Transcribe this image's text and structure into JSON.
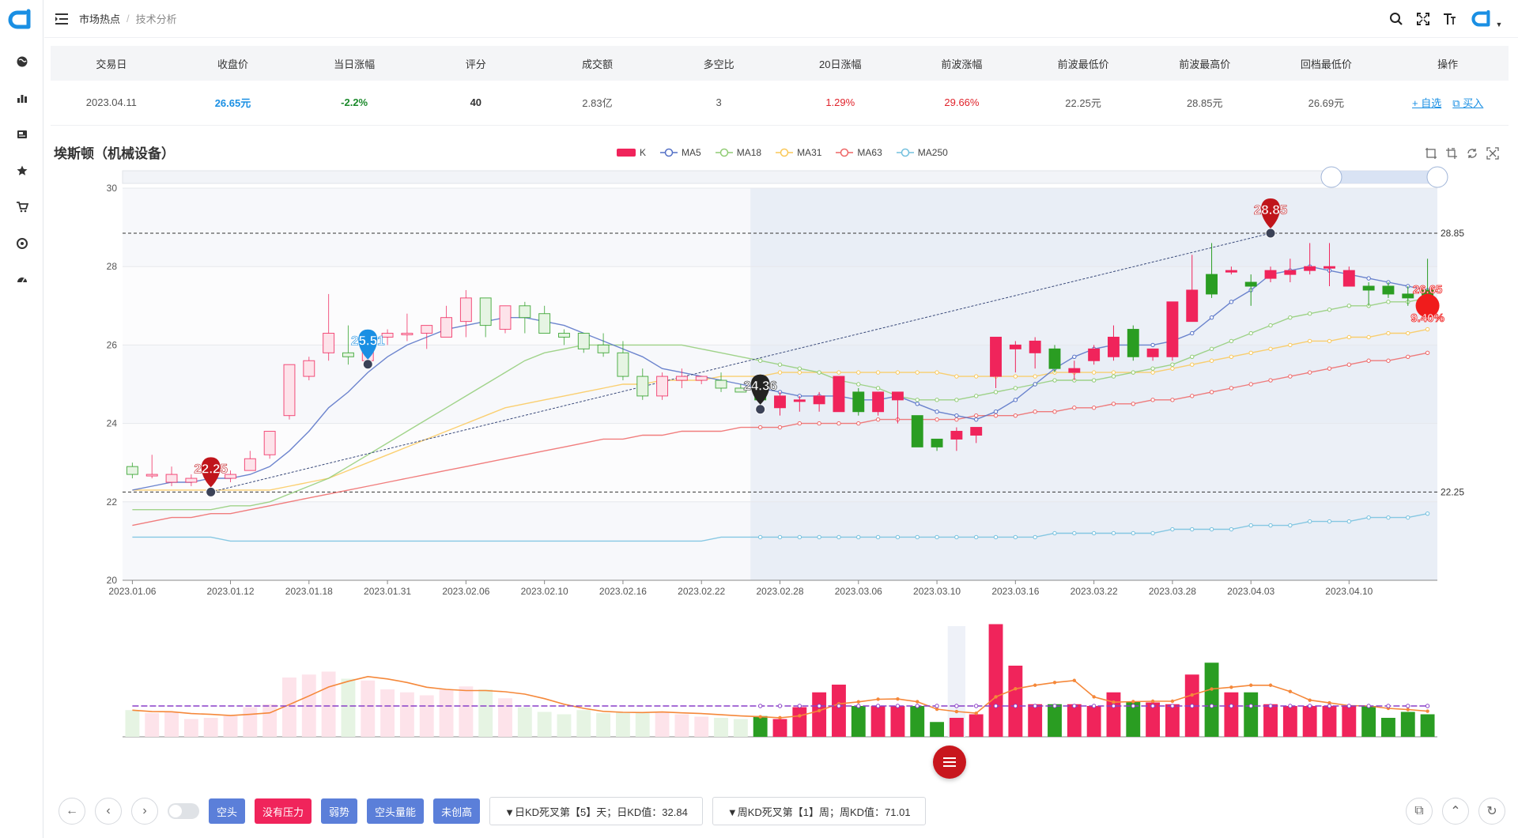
{
  "breadcrumb": {
    "parent": "市场热点",
    "separator": "/",
    "current": "技术分析"
  },
  "summary": {
    "headers": [
      "交易日",
      "收盘价",
      "当日涨幅",
      "评分",
      "成交额",
      "多空比",
      "20日涨幅",
      "前波涨幅",
      "前波最低价",
      "前波最高价",
      "回档最低价",
      "操作"
    ],
    "row": {
      "date": "2023.04.11",
      "close": "26.65元",
      "change": "-2.2%",
      "score": "40",
      "turnover": "2.83亿",
      "ratio": "3",
      "change20": "1.29%",
      "prev_wave": "29.66%",
      "prev_low": "22.25元",
      "prev_high": "28.85元",
      "pullback_low": "26.69元",
      "op_watch": "+ 自选",
      "op_buy": "买入"
    }
  },
  "chart_title": "埃斯顿（机械设备）",
  "legend": [
    {
      "label": "K",
      "color": "#f0245b",
      "kind": "rect"
    },
    {
      "label": "MA5",
      "color": "#5470c6",
      "kind": "dot"
    },
    {
      "label": "MA18",
      "color": "#91cc75",
      "kind": "dot"
    },
    {
      "label": "MA31",
      "color": "#fac858",
      "kind": "dot"
    },
    {
      "label": "MA63",
      "color": "#ee6666",
      "kind": "dot"
    },
    {
      "label": "MA250",
      "color": "#73c0de",
      "kind": "dot"
    }
  ],
  "chart_data": {
    "type": "candlestick",
    "y_ticks": [
      30,
      28,
      26,
      24,
      22,
      20
    ],
    "ylim": [
      20,
      30
    ],
    "x_ticks": [
      "2023.01.06",
      "2023.01.12",
      "2023.01.18",
      "2023.01.31",
      "2023.02.06",
      "2023.02.10",
      "2023.02.16",
      "2023.02.22",
      "2023.02.28",
      "2023.03.06",
      "2023.03.10",
      "2023.03.16",
      "2023.03.22",
      "2023.03.28",
      "2023.04.03",
      "2023.04.10"
    ],
    "candles": [
      [
        22.9,
        22.7,
        23.0,
        22.6
      ],
      [
        22.7,
        22.7,
        23.2,
        22.6
      ],
      [
        22.5,
        22.7,
        22.9,
        22.4
      ],
      [
        22.5,
        22.6,
        22.7,
        22.4
      ],
      [
        22.6,
        22.7,
        22.8,
        22.5
      ],
      [
        22.6,
        22.7,
        22.8,
        22.5
      ],
      [
        22.8,
        23.1,
        23.3,
        22.8
      ],
      [
        23.2,
        23.8,
        23.8,
        23.1
      ],
      [
        24.2,
        25.5,
        25.5,
        24.1
      ],
      [
        25.2,
        25.6,
        25.7,
        25.1
      ],
      [
        25.8,
        26.3,
        27.3,
        25.6
      ],
      [
        25.8,
        25.7,
        26.5,
        25.5
      ],
      [
        25.6,
        26.2,
        26.3,
        25.5
      ],
      [
        26.2,
        26.3,
        26.4,
        26.0
      ],
      [
        26.3,
        26.3,
        26.8,
        26.1
      ],
      [
        26.3,
        26.5,
        26.5,
        25.9
      ],
      [
        26.2,
        26.7,
        27.0,
        26.2
      ],
      [
        26.6,
        27.2,
        27.4,
        26.2
      ],
      [
        27.2,
        26.5,
        27.2,
        26.2
      ],
      [
        26.4,
        27.0,
        27.0,
        26.3
      ],
      [
        27.0,
        26.7,
        27.1,
        26.3
      ],
      [
        26.8,
        26.3,
        27.0,
        26.3
      ],
      [
        26.3,
        26.2,
        26.4,
        26.0
      ],
      [
        26.3,
        25.9,
        26.3,
        25.8
      ],
      [
        26.0,
        25.8,
        26.3,
        25.7
      ],
      [
        25.8,
        25.2,
        26.1,
        25.1
      ],
      [
        25.2,
        24.7,
        25.4,
        24.6
      ],
      [
        24.7,
        25.2,
        25.3,
        24.6
      ],
      [
        25.1,
        25.2,
        25.4,
        24.9
      ],
      [
        25.1,
        25.2,
        25.2,
        25.0
      ],
      [
        25.1,
        24.9,
        25.3,
        24.8
      ],
      [
        24.9,
        24.8,
        25.0,
        24.8
      ],
      [
        24.8,
        24.6,
        24.9,
        24.4
      ],
      [
        24.4,
        24.7,
        24.8,
        24.2
      ],
      [
        24.6,
        24.6,
        24.7,
        24.3
      ],
      [
        24.5,
        24.7,
        24.8,
        24.3
      ],
      [
        24.3,
        25.2,
        25.2,
        24.3
      ],
      [
        24.8,
        24.3,
        24.9,
        24.2
      ],
      [
        24.3,
        24.8,
        24.8,
        24.2
      ],
      [
        24.6,
        24.8,
        24.8,
        24.0
      ],
      [
        24.2,
        23.4,
        24.2,
        23.4
      ],
      [
        23.6,
        23.4,
        23.6,
        23.3
      ],
      [
        23.6,
        23.8,
        23.9,
        23.3
      ],
      [
        23.7,
        23.9,
        23.9,
        23.5
      ],
      [
        25.2,
        26.2,
        26.2,
        24.9
      ],
      [
        25.9,
        26.0,
        26.1,
        25.3
      ],
      [
        25.8,
        26.1,
        26.2,
        25.4
      ],
      [
        25.9,
        25.4,
        26.0,
        25.3
      ],
      [
        25.3,
        25.4,
        25.6,
        25.1
      ],
      [
        25.6,
        25.9,
        26.0,
        25.5
      ],
      [
        25.7,
        26.2,
        26.5,
        25.6
      ],
      [
        26.4,
        25.7,
        26.5,
        25.6
      ],
      [
        25.7,
        25.9,
        25.9,
        25.6
      ],
      [
        25.7,
        27.1,
        27.1,
        25.6
      ],
      [
        26.6,
        27.4,
        28.3,
        26.6
      ],
      [
        27.8,
        27.3,
        28.6,
        27.2
      ],
      [
        27.9,
        27.9,
        28.0,
        27.8
      ],
      [
        27.6,
        27.5,
        27.8,
        27.0
      ],
      [
        27.7,
        27.9,
        28.0,
        27.6
      ],
      [
        27.8,
        27.9,
        28.2,
        27.6
      ],
      [
        27.9,
        28.0,
        28.6,
        27.8
      ],
      [
        28.0,
        28.0,
        28.6,
        27.5
      ],
      [
        27.5,
        27.9,
        28.0,
        27.6
      ],
      [
        27.5,
        27.4,
        27.6,
        27.0
      ],
      [
        27.5,
        27.3,
        27.6,
        27.2
      ],
      [
        27.3,
        27.2,
        27.5,
        27.0
      ],
      [
        27.4,
        27.0,
        28.2,
        26.9
      ]
    ],
    "ma5": [
      22.3,
      22.4,
      22.5,
      22.5,
      22.6,
      22.6,
      22.7,
      22.9,
      23.3,
      23.8,
      24.4,
      24.8,
      25.3,
      25.7,
      26.0,
      26.2,
      26.4,
      26.5,
      26.6,
      26.7,
      26.7,
      26.6,
      26.5,
      26.3,
      26.1,
      25.9,
      25.7,
      25.4,
      25.3,
      25.2,
      25.1,
      25.0,
      24.9,
      24.8,
      24.7,
      24.7,
      24.7,
      24.6,
      24.6,
      24.7,
      24.5,
      24.3,
      24.2,
      24.1,
      24.3,
      24.6,
      25.0,
      25.4,
      25.7,
      25.9,
      26.0,
      26.0,
      26.0,
      26.1,
      26.3,
      26.7,
      27.1,
      27.4,
      27.8,
      27.9,
      28.0,
      27.9,
      27.8,
      27.7,
      27.6,
      27.5,
      27.4
    ],
    "ma18": [
      21.8,
      21.8,
      21.8,
      21.8,
      21.8,
      21.9,
      21.9,
      22.0,
      22.2,
      22.4,
      22.6,
      22.9,
      23.2,
      23.5,
      23.8,
      24.1,
      24.4,
      24.7,
      25.0,
      25.3,
      25.6,
      25.8,
      25.9,
      26.0,
      26.0,
      26.0,
      26.0,
      26.0,
      26.0,
      25.9,
      25.8,
      25.7,
      25.6,
      25.5,
      25.4,
      25.3,
      25.1,
      25.0,
      24.9,
      24.7,
      24.6,
      24.6,
      24.6,
      24.7,
      24.8,
      24.9,
      25.0,
      25.1,
      25.1,
      25.1,
      25.2,
      25.3,
      25.4,
      25.5,
      25.7,
      25.9,
      26.1,
      26.3,
      26.5,
      26.7,
      26.8,
      26.9,
      27.0,
      27.0,
      27.1,
      27.1,
      27.2
    ],
    "ma31": [
      22.3,
      22.3,
      22.3,
      22.3,
      22.3,
      22.3,
      22.3,
      22.3,
      22.4,
      22.5,
      22.6,
      22.8,
      23.0,
      23.2,
      23.4,
      23.6,
      23.8,
      24.0,
      24.2,
      24.4,
      24.5,
      24.6,
      24.7,
      24.8,
      24.9,
      25.0,
      25.0,
      25.1,
      25.1,
      25.1,
      25.2,
      25.2,
      25.2,
      25.3,
      25.3,
      25.3,
      25.3,
      25.3,
      25.3,
      25.3,
      25.3,
      25.3,
      25.2,
      25.2,
      25.2,
      25.2,
      25.2,
      25.3,
      25.3,
      25.3,
      25.3,
      25.3,
      25.3,
      25.4,
      25.5,
      25.6,
      25.7,
      25.8,
      25.9,
      26.0,
      26.1,
      26.1,
      26.2,
      26.2,
      26.3,
      26.3,
      26.4
    ],
    "ma63": [
      21.4,
      21.5,
      21.6,
      21.6,
      21.7,
      21.7,
      21.8,
      21.9,
      22.0,
      22.1,
      22.2,
      22.3,
      22.4,
      22.5,
      22.6,
      22.7,
      22.8,
      22.9,
      23.0,
      23.1,
      23.2,
      23.3,
      23.4,
      23.5,
      23.6,
      23.6,
      23.7,
      23.7,
      23.8,
      23.8,
      23.8,
      23.9,
      23.9,
      23.9,
      24.0,
      24.0,
      24.0,
      24.0,
      24.1,
      24.1,
      24.1,
      24.1,
      24.1,
      24.2,
      24.2,
      24.2,
      24.3,
      24.3,
      24.4,
      24.4,
      24.5,
      24.5,
      24.6,
      24.6,
      24.7,
      24.8,
      24.9,
      25.0,
      25.1,
      25.2,
      25.3,
      25.4,
      25.5,
      25.6,
      25.6,
      25.7,
      25.8
    ],
    "ma250": [
      21.1,
      21.1,
      21.1,
      21.1,
      21.1,
      21.0,
      21.0,
      21.0,
      21.0,
      21.0,
      21.0,
      21.0,
      21.0,
      21.0,
      21.0,
      21.0,
      21.0,
      21.0,
      21.0,
      21.0,
      21.0,
      21.0,
      21.0,
      21.0,
      21.0,
      21.0,
      21.0,
      21.0,
      21.0,
      21.0,
      21.1,
      21.1,
      21.1,
      21.1,
      21.1,
      21.1,
      21.1,
      21.1,
      21.1,
      21.1,
      21.1,
      21.1,
      21.1,
      21.1,
      21.1,
      21.1,
      21.1,
      21.2,
      21.2,
      21.2,
      21.2,
      21.2,
      21.2,
      21.3,
      21.3,
      21.3,
      21.3,
      21.4,
      21.4,
      21.4,
      21.5,
      21.5,
      21.5,
      21.6,
      21.6,
      21.6,
      21.7
    ],
    "volume": [
      0.45,
      0.4,
      0.42,
      0.3,
      0.32,
      0.35,
      0.5,
      0.55,
      1.0,
      1.05,
      1.1,
      0.98,
      0.95,
      0.8,
      0.75,
      0.7,
      0.8,
      0.85,
      0.8,
      0.65,
      0.5,
      0.42,
      0.38,
      0.45,
      0.4,
      0.42,
      0.4,
      0.42,
      0.38,
      0.34,
      0.32,
      0.3,
      0.35,
      0.3,
      0.5,
      0.75,
      0.88,
      0.52,
      0.52,
      0.52,
      0.52,
      0.25,
      0.32,
      0.38,
      1.9,
      1.2,
      0.55,
      0.55,
      0.55,
      0.52,
      0.75,
      0.6,
      0.58,
      0.55,
      1.05,
      1.25,
      0.75,
      0.75,
      0.55,
      0.52,
      0.52,
      0.52,
      0.52,
      0.52,
      0.32,
      0.42,
      0.38
    ],
    "levels": [
      {
        "value": 28.85,
        "label": "28.85"
      },
      {
        "value": 22.25,
        "label": "22.25"
      }
    ],
    "markers": [
      {
        "label": "22.25",
        "value": 22.25,
        "index": 4,
        "color": "#c0151b"
      },
      {
        "label": "25.51",
        "value": 25.51,
        "index": 12,
        "color": "#1a8fe3"
      },
      {
        "label": "24.36",
        "value": 24.36,
        "index": 32,
        "color": "#222"
      },
      {
        "label": "28.85",
        "value": 28.85,
        "index": 58,
        "color": "#c0151b"
      }
    ],
    "last_price": {
      "label": "26.65",
      "pct": "9.40%"
    }
  },
  "bottom": {
    "tags": [
      {
        "label": "空头",
        "color": "blue"
      },
      {
        "label": "没有压力",
        "color": "red"
      },
      {
        "label": "弱势",
        "color": "blue"
      },
      {
        "label": "空头量能",
        "color": "blue"
      },
      {
        "label": "未创高",
        "color": "blue"
      }
    ],
    "info_daily": "▼日KD死叉第【5】天；日KD值：32.84",
    "info_weekly": "▼周KD死叉第【1】周；周KD值：71.01"
  }
}
